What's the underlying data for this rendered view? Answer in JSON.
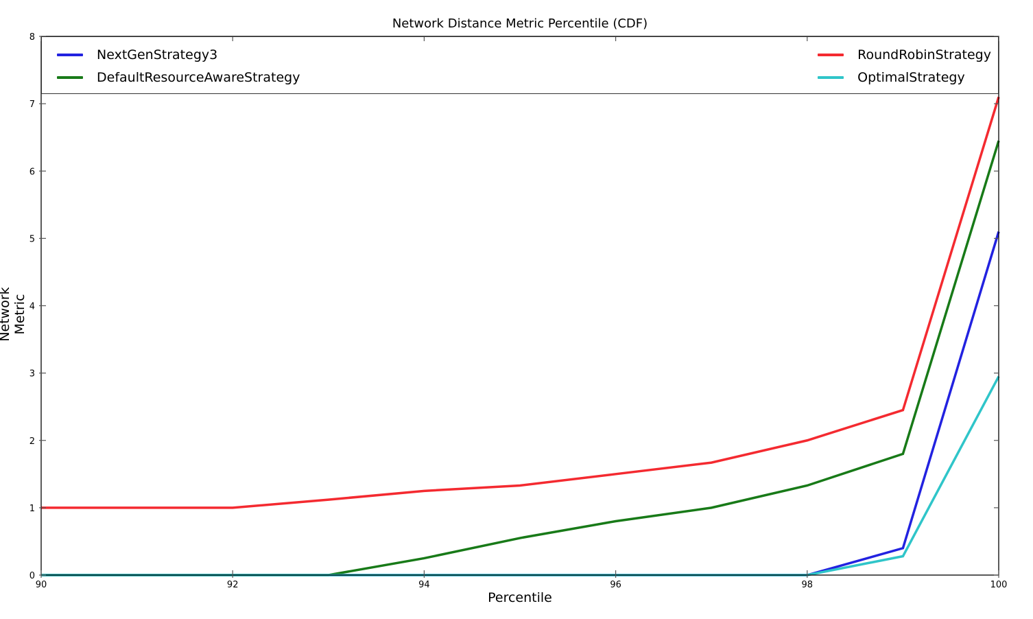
{
  "figure": {
    "background": "#ffffff",
    "axis_color": "#000000",
    "tick_color": "#555555"
  },
  "chart_data": {
    "type": "line",
    "title": "Network Distance Metric Percentile (CDF)",
    "xlabel": "Percentile",
    "ylabel": "Network Metric",
    "xlim": [
      90,
      100
    ],
    "ylim": [
      0,
      8
    ],
    "xticks": [
      90,
      92,
      94,
      96,
      98,
      100
    ],
    "yticks": [
      0,
      1,
      2,
      3,
      4,
      5,
      6,
      7,
      8
    ],
    "grid": false,
    "legend_position": "top-full-width-2-columns",
    "line_width": 3.5,
    "x": [
      90,
      91,
      92,
      93,
      94,
      95,
      96,
      97,
      98,
      99,
      100
    ],
    "series": [
      {
        "name": "NextGenStrategy3",
        "color": "#2222e0",
        "values": [
          0,
          0,
          0,
          0,
          0,
          0,
          0,
          0,
          0,
          0.4,
          5.1
        ]
      },
      {
        "name": "DefaultResourceAwareStrategy",
        "color": "#187a18",
        "values": [
          0,
          0,
          0,
          0,
          0.25,
          0.55,
          0.8,
          1.0,
          1.33,
          1.8,
          6.45
        ]
      },
      {
        "name": "RoundRobinStrategy",
        "color": "#f42a30",
        "values": [
          1.0,
          1.0,
          1.0,
          1.12,
          1.25,
          1.33,
          1.5,
          1.67,
          2.0,
          2.45,
          7.1
        ]
      },
      {
        "name": "OptimalStrategy",
        "color": "#2fc5c9",
        "values": [
          0,
          0,
          0,
          0,
          0,
          0,
          0,
          0,
          0,
          0.28,
          2.95
        ]
      }
    ]
  },
  "legend": {
    "columns": [
      {
        "items": [
          {
            "label": "NextGenStrategy3",
            "color": "#2222e0"
          },
          {
            "label": "DefaultResourceAwareStrategy",
            "color": "#187a18"
          }
        ]
      },
      {
        "items": [
          {
            "label": "RoundRobinStrategy",
            "color": "#f42a30"
          },
          {
            "label": "OptimalStrategy",
            "color": "#2fc5c9"
          }
        ]
      }
    ]
  }
}
